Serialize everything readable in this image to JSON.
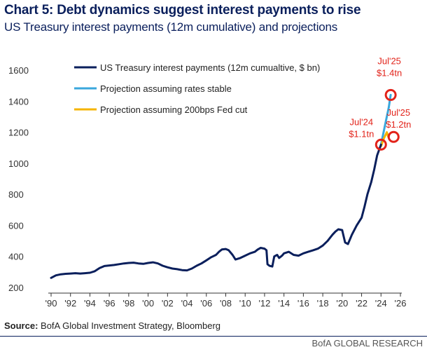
{
  "title": "Chart 5: Debt dynamics suggest interest payments to rise",
  "subtitle": "US Treasury interest payments (12m cumulative) and projections",
  "source_label": "Source:",
  "source_text": "BofA Global Investment Strategy, Bloomberg",
  "brand": "BofA GLOBAL RESEARCH",
  "chart_data": {
    "type": "line",
    "title": "Chart 5: Debt dynamics suggest interest payments to rise",
    "subtitle": "US Treasury interest payments (12m cumulative) and projections",
    "xlabel": "",
    "ylabel": "",
    "xlim": [
      1990,
      2026
    ],
    "ylim": [
      200,
      1600
    ],
    "x_ticks": [
      1990,
      1992,
      1994,
      1996,
      1998,
      2000,
      2002,
      2004,
      2006,
      2008,
      2010,
      2012,
      2014,
      2016,
      2018,
      2020,
      2022,
      2024,
      2026
    ],
    "x_tick_labels": [
      "'90",
      "'92",
      "'94",
      "'96",
      "'98",
      "'00",
      "'02",
      "'04",
      "'06",
      "'08",
      "'10",
      "'12",
      "'14",
      "'16",
      "'18",
      "'20",
      "'22",
      "'24",
      "'26"
    ],
    "y_ticks": [
      200,
      400,
      600,
      800,
      1000,
      1200,
      1400,
      1600
    ],
    "grid": false,
    "legend_position": "top-left",
    "series": [
      {
        "name": "US Treasury interest payments (12m cumualtive, $ bn)",
        "color": "#0a1f5c",
        "x": [
          1990.0,
          1990.5,
          1991.0,
          1991.5,
          1992.0,
          1992.5,
          1993.0,
          1993.5,
          1994.0,
          1994.5,
          1995.0,
          1995.5,
          1996.0,
          1996.5,
          1997.0,
          1997.5,
          1998.0,
          1998.5,
          1999.0,
          1999.5,
          2000.0,
          2000.5,
          2001.0,
          2001.5,
          2002.0,
          2002.5,
          2003.0,
          2003.5,
          2004.0,
          2004.5,
          2005.0,
          2005.5,
          2006.0,
          2006.5,
          2007.0,
          2007.3,
          2007.6,
          2008.0,
          2008.3,
          2008.7,
          2009.0,
          2009.5,
          2010.0,
          2010.5,
          2011.0,
          2011.3,
          2011.6,
          2012.0,
          2012.2,
          2012.3,
          2012.5,
          2012.8,
          2013.0,
          2013.3,
          2013.5,
          2013.8,
          2014.0,
          2014.5,
          2015.0,
          2015.5,
          2016.0,
          2016.5,
          2017.0,
          2017.5,
          2018.0,
          2018.5,
          2019.0,
          2019.3,
          2019.6,
          2020.0,
          2020.3,
          2020.6,
          2021.0,
          2021.5,
          2022.0,
          2022.3,
          2022.6,
          2023.0,
          2023.3,
          2023.6,
          2024.0
        ],
        "values": [
          262,
          278,
          285,
          288,
          290,
          292,
          290,
          292,
          295,
          305,
          325,
          338,
          342,
          345,
          350,
          355,
          358,
          360,
          355,
          352,
          358,
          362,
          355,
          340,
          330,
          322,
          318,
          312,
          310,
          322,
          340,
          355,
          375,
          395,
          410,
          430,
          445,
          448,
          440,
          410,
          380,
          390,
          405,
          420,
          430,
          445,
          455,
          450,
          440,
          350,
          340,
          335,
          400,
          410,
          390,
          405,
          420,
          430,
          410,
          405,
          420,
          430,
          440,
          450,
          470,
          500,
          540,
          560,
          575,
          570,
          490,
          480,
          540,
          600,
          650,
          720,
          800,
          880,
          960,
          1050,
          1120
        ]
      },
      {
        "name": "Projection assuming rates stable",
        "color": "#3aa7dc",
        "x": [
          2024.0,
          2024.4,
          2024.8,
          2025.0
        ],
        "values": [
          1120,
          1240,
          1360,
          1440
        ]
      },
      {
        "name": "Projection assuming 200bps Fed cut",
        "color": "#f5b400",
        "x": [
          2024.0,
          2024.3,
          2024.6,
          2024.75
        ],
        "values": [
          1110,
          1160,
          1200,
          1170
        ]
      }
    ],
    "annotations": [
      {
        "label": "Jul'25",
        "sub": "$1.4tn",
        "x": 2025.0,
        "y": 1440,
        "color": "#e2231a"
      },
      {
        "label": "Jul'25",
        "sub": "$1.2tn",
        "x": 2025.3,
        "y": 1170,
        "color": "#e2231a"
      },
      {
        "label": "Jul'24",
        "sub": "$1.1tn",
        "x": 2024.0,
        "y": 1120,
        "color": "#e2231a"
      }
    ]
  }
}
